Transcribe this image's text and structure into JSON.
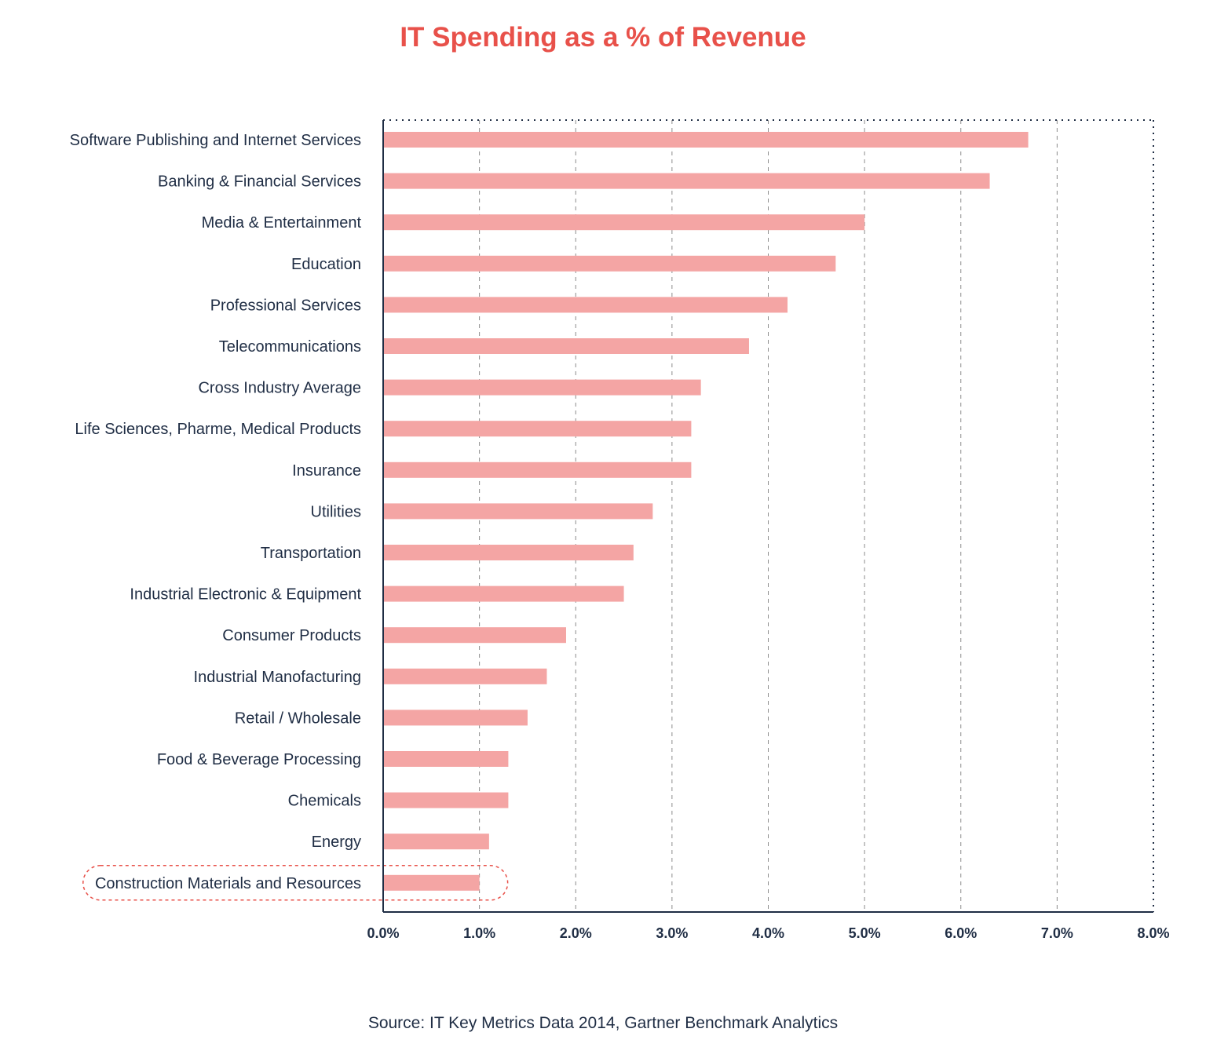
{
  "chart_data": {
    "type": "bar",
    "orientation": "horizontal",
    "title": "IT Spending as a % of Revenue",
    "xlabel": "",
    "ylabel": "",
    "xlim": [
      0,
      8
    ],
    "grid": true,
    "ticks": [
      "0.0%",
      "1.0%",
      "2.0%",
      "3.0%",
      "4.0%",
      "5.0%",
      "6.0%",
      "7.0%",
      "8.0%"
    ],
    "categories": [
      "Software Publishing and Internet Services",
      "Banking & Financial Services",
      "Media & Entertainment",
      "Education",
      "Professional Services",
      "Telecommunications",
      "Cross Industry Average",
      "Life Sciences, Pharme, Medical Products",
      "Insurance",
      "Utilities",
      "Transportation",
      "Industrial Electronic & Equipment",
      "Consumer Products",
      "Industrial Manofacturing",
      "Retail / Wholesale",
      "Food & Beverage Processing",
      "Chemicals",
      "Energy",
      "Construction Materials and Resources"
    ],
    "values": [
      6.7,
      6.3,
      5.0,
      4.7,
      4.2,
      3.8,
      3.3,
      3.2,
      3.2,
      2.8,
      2.6,
      2.5,
      1.9,
      1.7,
      1.5,
      1.3,
      1.3,
      1.1,
      1.0
    ],
    "highlighted_category": "Construction Materials and Resources",
    "source": "Source: IT Key Metrics Data 2014, Gartner Benchmark Analytics"
  },
  "colors": {
    "title": "#e8514a",
    "bar": "#f4a5a4",
    "axis": "#1f2d44",
    "grid": "#8c8c8c",
    "text": "#1f2d44",
    "highlight": "#e8514a"
  }
}
